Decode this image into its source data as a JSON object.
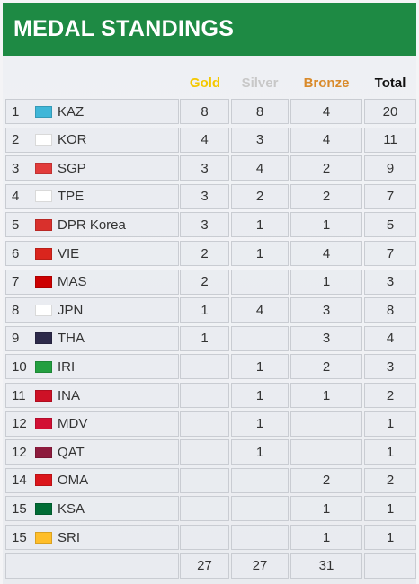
{
  "header": {
    "title": "MEDAL STANDINGS"
  },
  "columns": {
    "gold": "Gold",
    "silver": "Silver",
    "bronze": "Bronze",
    "total": "Total"
  },
  "rows": [
    {
      "rank": "1",
      "country": "KAZ",
      "flag_icon": "kazakhstan-flag-icon",
      "flag_color": "#3fb6d8",
      "gold": "8",
      "silver": "8",
      "bronze": "4",
      "total": "20"
    },
    {
      "rank": "2",
      "country": "KOR",
      "flag_icon": "korea-flag-icon",
      "flag_color": "#ffffff",
      "gold": "4",
      "silver": "3",
      "bronze": "4",
      "total": "11"
    },
    {
      "rank": "3",
      "country": "SGP",
      "flag_icon": "singapore-flag-icon",
      "flag_color": "#e23b3b",
      "gold": "3",
      "silver": "4",
      "bronze": "2",
      "total": "9"
    },
    {
      "rank": "4",
      "country": "TPE",
      "flag_icon": "chinese-taipei-flag-icon",
      "flag_color": "#ffffff",
      "gold": "3",
      "silver": "2",
      "bronze": "2",
      "total": "7"
    },
    {
      "rank": "5",
      "country": "DPR Korea",
      "flag_icon": "dpr-korea-flag-icon",
      "flag_color": "#d9302c",
      "gold": "3",
      "silver": "1",
      "bronze": "1",
      "total": "5"
    },
    {
      "rank": "6",
      "country": "VIE",
      "flag_icon": "vietnam-flag-icon",
      "flag_color": "#da251d",
      "gold": "2",
      "silver": "1",
      "bronze": "4",
      "total": "7"
    },
    {
      "rank": "7",
      "country": "MAS",
      "flag_icon": "malaysia-flag-icon",
      "flag_color": "#cc0001",
      "gold": "2",
      "silver": "",
      "bronze": "1",
      "total": "3"
    },
    {
      "rank": "8",
      "country": "JPN",
      "flag_icon": "japan-flag-icon",
      "flag_color": "#ffffff",
      "gold": "1",
      "silver": "4",
      "bronze": "3",
      "total": "8"
    },
    {
      "rank": "9",
      "country": "THA",
      "flag_icon": "thailand-flag-icon",
      "flag_color": "#2d2a4a",
      "gold": "1",
      "silver": "",
      "bronze": "3",
      "total": "4"
    },
    {
      "rank": "10",
      "country": "IRI",
      "flag_icon": "iran-flag-icon",
      "flag_color": "#239f40",
      "gold": "",
      "silver": "1",
      "bronze": "2",
      "total": "3"
    },
    {
      "rank": "11",
      "country": "INA",
      "flag_icon": "indonesia-flag-icon",
      "flag_color": "#ce1126",
      "gold": "",
      "silver": "1",
      "bronze": "1",
      "total": "2"
    },
    {
      "rank": "12",
      "country": "MDV",
      "flag_icon": "maldives-flag-icon",
      "flag_color": "#d21034",
      "gold": "",
      "silver": "1",
      "bronze": "",
      "total": "1"
    },
    {
      "rank": "12",
      "country": "QAT",
      "flag_icon": "qatar-flag-icon",
      "flag_color": "#8d1b3d",
      "gold": "",
      "silver": "1",
      "bronze": "",
      "total": "1"
    },
    {
      "rank": "14",
      "country": "OMA",
      "flag_icon": "oman-flag-icon",
      "flag_color": "#db161b",
      "gold": "",
      "silver": "",
      "bronze": "2",
      "total": "2"
    },
    {
      "rank": "15",
      "country": "KSA",
      "flag_icon": "saudi-arabia-flag-icon",
      "flag_color": "#006c35",
      "gold": "",
      "silver": "",
      "bronze": "1",
      "total": "1"
    },
    {
      "rank": "15",
      "country": "SRI",
      "flag_icon": "sri-lanka-flag-icon",
      "flag_color": "#ffbe29",
      "gold": "",
      "silver": "",
      "bronze": "1",
      "total": "1"
    }
  ],
  "totals": {
    "gold": "27",
    "silver": "27",
    "bronze": "31",
    "total": ""
  },
  "colors": {
    "header_bg": "#1e8a44",
    "gold": "#f4c800",
    "silver": "#c8c8c8",
    "bronze": "#d98a2b"
  }
}
